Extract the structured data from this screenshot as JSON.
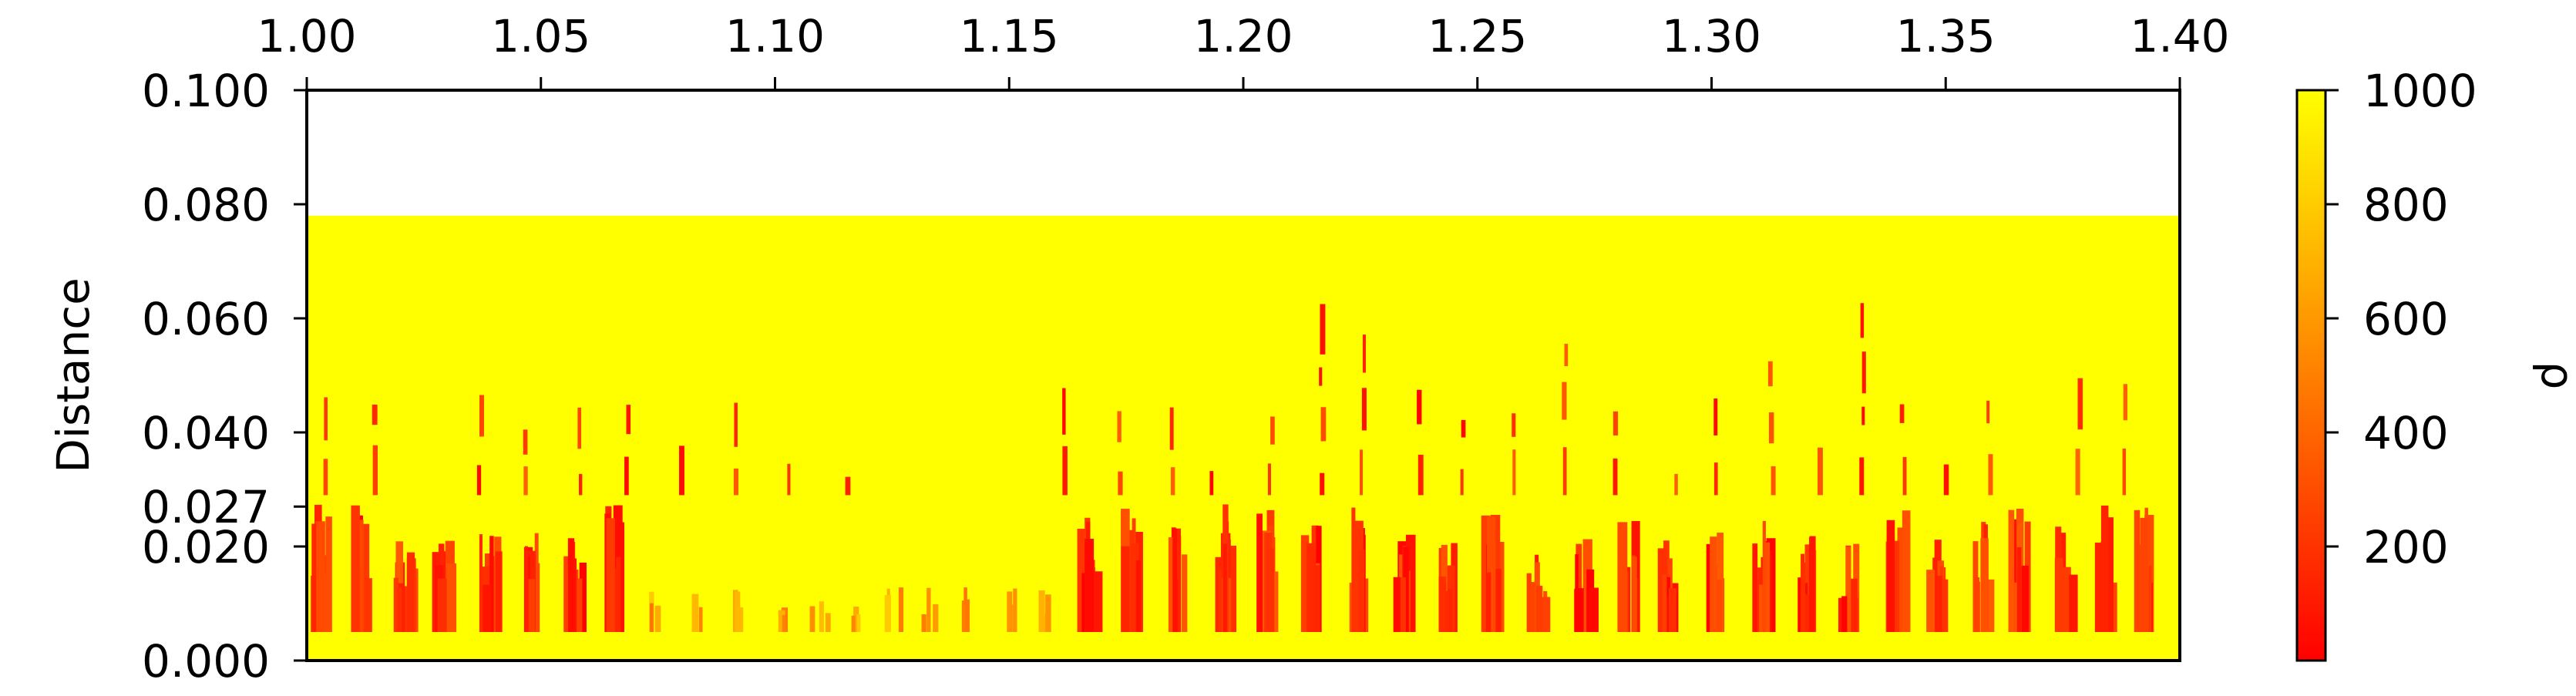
{
  "chart_data": {
    "type": "heatmap",
    "ylabel": "Distance",
    "xlim": [
      1.0,
      1.4
    ],
    "ylim": [
      0.0,
      0.1
    ],
    "x_ticks": [
      "1.00",
      "1.05",
      "1.10",
      "1.15",
      "1.20",
      "1.25",
      "1.30",
      "1.35",
      "1.40"
    ],
    "y_ticks": [
      {
        "value": 0.0,
        "label": "0.000"
      },
      {
        "value": 0.02,
        "label": "0.020"
      },
      {
        "value": 0.027,
        "label": "0.027"
      },
      {
        "value": 0.04,
        "label": "0.040"
      },
      {
        "value": 0.06,
        "label": "0.060"
      },
      {
        "value": 0.08,
        "label": "0.080"
      },
      {
        "value": 0.1,
        "label": "0.100"
      }
    ],
    "x_axis_position": "top",
    "data_extent": {
      "y_min": 0.0,
      "y_max": 0.078
    },
    "colorbar": {
      "label": "ρ",
      "colormap": "autumn",
      "range": [
        0,
        1000
      ],
      "ticks": [
        "200",
        "400",
        "600",
        "800",
        "1000"
      ],
      "colors": {
        "low": "#ff0000",
        "high": "#ffff00"
      }
    },
    "background_value": 1000,
    "grid": false
  }
}
